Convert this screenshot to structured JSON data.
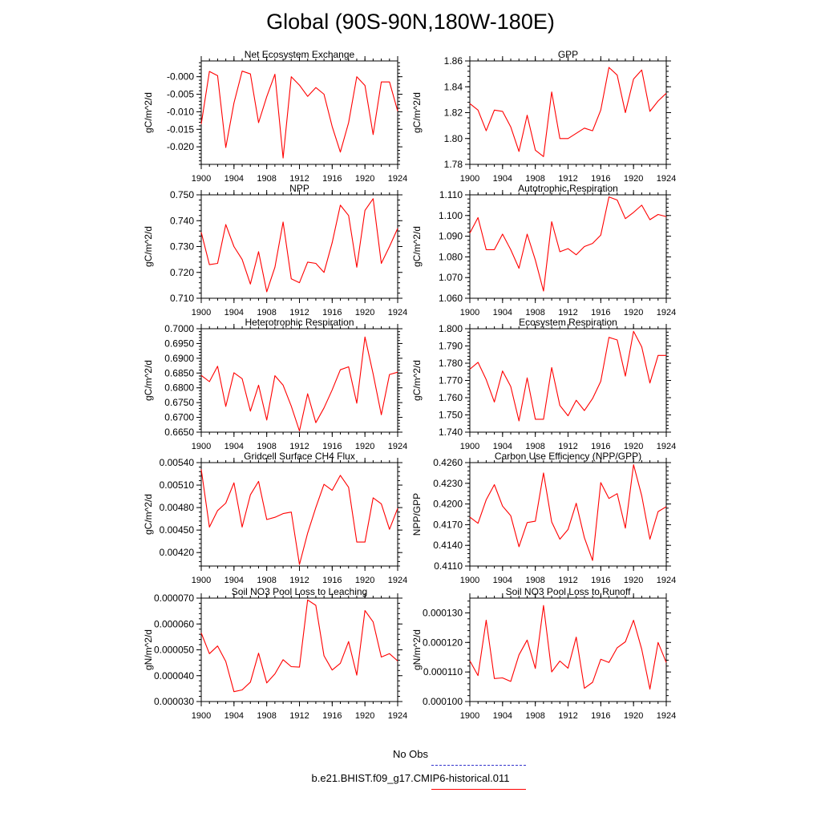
{
  "title": "Global (90S-90N,180W-180E)",
  "series_color": "#ff0000",
  "obs_color": "#3333cc",
  "legend": {
    "items": [
      {
        "label": "No Obs",
        "style": "dashed",
        "color": "#3333cc"
      },
      {
        "label": "b.e21.BHIST.f09_g17.CMIP6-historical.011",
        "style": "solid",
        "color": "#ff0000"
      }
    ]
  },
  "chart_data": [
    {
      "type": "line",
      "title": "Net Ecosystem Exchange",
      "ylabel": "gC/m^2/d",
      "xlim": [
        1900,
        1924
      ],
      "ylim": [
        -0.025,
        0.0045
      ],
      "xticks": [
        "1900",
        "1904",
        "1908",
        "1912",
        "1916",
        "1920",
        "1924"
      ],
      "xtick_values": [
        1900,
        1904,
        1908,
        1912,
        1916,
        1920,
        1924
      ],
      "yticks": [
        "-0.020",
        "-0.015",
        "-0.010",
        "-0.005",
        "-0.000"
      ],
      "ytick_values": [
        -0.02,
        -0.015,
        -0.01,
        -0.005,
        0.0
      ],
      "x": [
        1900,
        1901,
        1902,
        1903,
        1904,
        1905,
        1906,
        1907,
        1908,
        1909,
        1910,
        1911,
        1912,
        1913,
        1914,
        1915,
        1916,
        1917,
        1918,
        1919,
        1920,
        1921,
        1922,
        1923,
        1924
      ],
      "series": [
        {
          "values": [
            -0.0135,
            0.0015,
            0.0003,
            -0.0202,
            -0.0075,
            0.0016,
            0.0008,
            -0.0131,
            -0.0057,
            0.0007,
            -0.0232,
            0.0,
            -0.0024,
            -0.0056,
            -0.0031,
            -0.005,
            -0.0142,
            -0.0215,
            -0.0131,
            0.0,
            -0.0025,
            -0.0165,
            -0.0015,
            -0.0015,
            -0.0098
          ]
        }
      ]
    },
    {
      "type": "line",
      "title": "GPP",
      "ylabel": "gC/m^2/d",
      "xlim": [
        1900,
        1924
      ],
      "ylim": [
        1.78,
        1.86
      ],
      "xticks": [
        "1900",
        "1904",
        "1908",
        "1912",
        "1916",
        "1920",
        "1924"
      ],
      "xtick_values": [
        1900,
        1904,
        1908,
        1912,
        1916,
        1920,
        1924
      ],
      "yticks": [
        "1.78",
        "1.80",
        "1.82",
        "1.84",
        "1.86"
      ],
      "ytick_values": [
        1.78,
        1.8,
        1.82,
        1.84,
        1.86
      ],
      "x": [
        1900,
        1901,
        1902,
        1903,
        1904,
        1905,
        1906,
        1907,
        1908,
        1909,
        1910,
        1911,
        1912,
        1913,
        1914,
        1915,
        1916,
        1917,
        1918,
        1919,
        1920,
        1921,
        1922,
        1923,
        1924
      ],
      "series": [
        {
          "values": [
            1.827,
            1.822,
            1.806,
            1.822,
            1.821,
            1.809,
            1.79,
            1.818,
            1.791,
            1.786,
            1.836,
            1.8,
            1.8,
            1.804,
            1.808,
            1.806,
            1.822,
            1.855,
            1.849,
            1.82,
            1.846,
            1.853,
            1.821,
            1.829,
            1.835
          ]
        }
      ]
    },
    {
      "type": "line",
      "title": "NPP",
      "ylabel": "gC/m^2/d",
      "xlim": [
        1900,
        1924
      ],
      "ylim": [
        0.71,
        0.75
      ],
      "xticks": [
        "1900",
        "1904",
        "1908",
        "1912",
        "1916",
        "1920",
        "1924"
      ],
      "xtick_values": [
        1900,
        1904,
        1908,
        1912,
        1916,
        1920,
        1924
      ],
      "yticks": [
        "0.710",
        "0.720",
        "0.730",
        "0.740",
        "0.750"
      ],
      "ytick_values": [
        0.71,
        0.72,
        0.73,
        0.74,
        0.75
      ],
      "x": [
        1900,
        1901,
        1902,
        1903,
        1904,
        1905,
        1906,
        1907,
        1908,
        1909,
        1910,
        1911,
        1912,
        1913,
        1914,
        1915,
        1916,
        1917,
        1918,
        1919,
        1920,
        1921,
        1922,
        1923,
        1924
      ],
      "series": [
        {
          "values": [
            0.7355,
            0.723,
            0.7235,
            0.7385,
            0.73,
            0.725,
            0.7155,
            0.728,
            0.7125,
            0.722,
            0.7395,
            0.7175,
            0.716,
            0.724,
            0.7235,
            0.72,
            0.7315,
            0.746,
            0.742,
            0.722,
            0.744,
            0.7485,
            0.7235,
            0.73,
            0.737
          ]
        }
      ]
    },
    {
      "type": "line",
      "title": "Autotrophic Respiration",
      "ylabel": "gC/m^2/d",
      "xlim": [
        1900,
        1924
      ],
      "ylim": [
        1.06,
        1.11
      ],
      "xticks": [
        "1900",
        "1904",
        "1908",
        "1912",
        "1916",
        "1920",
        "1924"
      ],
      "xtick_values": [
        1900,
        1904,
        1908,
        1912,
        1916,
        1920,
        1924
      ],
      "yticks": [
        "1.060",
        "1.070",
        "1.080",
        "1.090",
        "1.100",
        "1.110"
      ],
      "ytick_values": [
        1.06,
        1.07,
        1.08,
        1.09,
        1.1,
        1.11
      ],
      "x": [
        1900,
        1901,
        1902,
        1903,
        1904,
        1905,
        1906,
        1907,
        1908,
        1909,
        1910,
        1911,
        1912,
        1913,
        1914,
        1915,
        1916,
        1917,
        1918,
        1919,
        1920,
        1921,
        1922,
        1923,
        1924
      ],
      "series": [
        {
          "values": [
            1.0915,
            1.099,
            1.0835,
            1.0835,
            1.091,
            1.0835,
            1.0745,
            1.091,
            1.0785,
            1.0635,
            1.097,
            1.0825,
            1.084,
            1.081,
            1.085,
            1.0865,
            1.0905,
            1.109,
            1.1075,
            1.0985,
            1.1015,
            1.105,
            1.098,
            1.1005,
            1.0995
          ]
        }
      ]
    },
    {
      "type": "line",
      "title": "Heterotrophic Respiration",
      "ylabel": "gC/m^2/d",
      "xlim": [
        1900,
        1924
      ],
      "ylim": [
        0.665,
        0.7
      ],
      "xticks": [
        "1900",
        "1904",
        "1908",
        "1912",
        "1916",
        "1920",
        "1924"
      ],
      "xtick_values": [
        1900,
        1904,
        1908,
        1912,
        1916,
        1920,
        1924
      ],
      "yticks": [
        "0.6650",
        "0.6700",
        "0.6750",
        "0.6800",
        "0.6850",
        "0.6900",
        "0.6950",
        "0.7000"
      ],
      "ytick_values": [
        0.665,
        0.67,
        0.675,
        0.68,
        0.685,
        0.69,
        0.695,
        0.7
      ],
      "x": [
        1900,
        1901,
        1902,
        1903,
        1904,
        1905,
        1906,
        1907,
        1908,
        1909,
        1910,
        1911,
        1912,
        1913,
        1914,
        1915,
        1916,
        1917,
        1918,
        1919,
        1920,
        1921,
        1922,
        1923,
        1924
      ],
      "series": [
        {
          "values": [
            0.6842,
            0.6821,
            0.6873,
            0.6737,
            0.6851,
            0.6831,
            0.6721,
            0.6809,
            0.6691,
            0.6841,
            0.6809,
            0.6738,
            0.6654,
            0.678,
            0.6682,
            0.6732,
            0.6793,
            0.6861,
            0.6871,
            0.6748,
            0.6972,
            0.6847,
            0.6709,
            0.6845,
            0.6853
          ]
        }
      ]
    },
    {
      "type": "line",
      "title": "Ecosystem Respiration",
      "ylabel": "gC/m^2/d",
      "xlim": [
        1900,
        1924
      ],
      "ylim": [
        1.74,
        1.8
      ],
      "xticks": [
        "1900",
        "1904",
        "1908",
        "1912",
        "1916",
        "1920",
        "1924"
      ],
      "xtick_values": [
        1900,
        1904,
        1908,
        1912,
        1916,
        1920,
        1924
      ],
      "yticks": [
        "1.740",
        "1.750",
        "1.760",
        "1.770",
        "1.780",
        "1.790",
        "1.800"
      ],
      "ytick_values": [
        1.74,
        1.75,
        1.76,
        1.77,
        1.78,
        1.79,
        1.8
      ],
      "x": [
        1900,
        1901,
        1902,
        1903,
        1904,
        1905,
        1906,
        1907,
        1908,
        1909,
        1910,
        1911,
        1912,
        1913,
        1914,
        1915,
        1916,
        1917,
        1918,
        1919,
        1920,
        1921,
        1922,
        1923,
        1924
      ],
      "series": [
        {
          "values": [
            1.7765,
            1.7805,
            1.7705,
            1.7575,
            1.7755,
            1.7665,
            1.7465,
            1.7715,
            1.7475,
            1.7475,
            1.7775,
            1.7555,
            1.7495,
            1.7585,
            1.7525,
            1.7595,
            1.7695,
            1.795,
            1.7935,
            1.7725,
            1.7985,
            1.7895,
            1.7685,
            1.7845,
            1.7845
          ]
        }
      ]
    },
    {
      "type": "line",
      "title": "Gridcell Surface CH4 Flux",
      "ylabel": "gC/m^2/d",
      "xlim": [
        1900,
        1924
      ],
      "ylim": [
        0.00402,
        0.0054
      ],
      "xticks": [
        "1900",
        "1904",
        "1908",
        "1912",
        "1916",
        "1920",
        "1924"
      ],
      "xtick_values": [
        1900,
        1904,
        1908,
        1912,
        1916,
        1920,
        1924
      ],
      "yticks": [
        "0.00420",
        "0.00450",
        "0.00480",
        "0.00510",
        "0.00540"
      ],
      "ytick_values": [
        0.0042,
        0.0045,
        0.0048,
        0.0051,
        0.0054
      ],
      "x": [
        1900,
        1901,
        1902,
        1903,
        1904,
        1905,
        1906,
        1907,
        1908,
        1909,
        1910,
        1911,
        1912,
        1913,
        1914,
        1915,
        1916,
        1917,
        1918,
        1919,
        1920,
        1921,
        1922,
        1923,
        1924
      ],
      "series": [
        {
          "values": [
            0.00531,
            0.00454,
            0.00476,
            0.00486,
            0.00513,
            0.00454,
            0.00497,
            0.00515,
            0.00464,
            0.00467,
            0.00472,
            0.00474,
            0.00404,
            0.00446,
            0.0048,
            0.00511,
            0.00503,
            0.00523,
            0.00507,
            0.00434,
            0.00434,
            0.00493,
            0.00485,
            0.00451,
            0.00479
          ]
        }
      ]
    },
    {
      "type": "line",
      "title": "Carbon Use Efficiency (NPP/GPP)",
      "ylabel": "NPP/GPP",
      "xlim": [
        1900,
        1924
      ],
      "ylim": [
        0.411,
        0.426
      ],
      "xticks": [
        "1900",
        "1904",
        "1908",
        "1912",
        "1916",
        "1920",
        "1924"
      ],
      "xtick_values": [
        1900,
        1904,
        1908,
        1912,
        1916,
        1920,
        1924
      ],
      "yticks": [
        "0.4110",
        "0.4140",
        "0.4170",
        "0.4200",
        "0.4230",
        "0.4260"
      ],
      "ytick_values": [
        0.411,
        0.414,
        0.417,
        0.42,
        0.423,
        0.426
      ],
      "x": [
        1900,
        1901,
        1902,
        1903,
        1904,
        1905,
        1906,
        1907,
        1908,
        1909,
        1910,
        1911,
        1912,
        1913,
        1914,
        1915,
        1916,
        1917,
        1918,
        1919,
        1920,
        1921,
        1922,
        1923,
        1924
      ],
      "series": [
        {
          "values": [
            0.4181,
            0.4172,
            0.4206,
            0.4228,
            0.4197,
            0.4183,
            0.4138,
            0.4173,
            0.4175,
            0.4245,
            0.4174,
            0.4149,
            0.4163,
            0.4201,
            0.4151,
            0.4118,
            0.4231,
            0.4208,
            0.4215,
            0.4165,
            0.4257,
            0.4212,
            0.4149,
            0.4189,
            0.4196
          ]
        }
      ]
    },
    {
      "type": "line",
      "title": "Soil NO3 Pool Loss to Leaching",
      "ylabel": "gN/m^2/d",
      "xlim": [
        1900,
        1924
      ],
      "ylim": [
        3e-05,
        7e-05
      ],
      "xticks": [
        "1900",
        "1904",
        "1908",
        "1912",
        "1916",
        "1920",
        "1924"
      ],
      "xtick_values": [
        1900,
        1904,
        1908,
        1912,
        1916,
        1920,
        1924
      ],
      "yticks": [
        "0.000030",
        "0.000040",
        "0.000050",
        "0.000060",
        "0.000070"
      ],
      "ytick_values": [
        3e-05,
        4e-05,
        5e-05,
        6e-05,
        7e-05
      ],
      "x": [
        1900,
        1901,
        1902,
        1903,
        1904,
        1905,
        1906,
        1907,
        1908,
        1909,
        1910,
        1911,
        1912,
        1913,
        1914,
        1915,
        1916,
        1917,
        1918,
        1919,
        1920,
        1921,
        1922,
        1923,
        1924
      ],
      "series": [
        {
          "values": [
            5.65e-05,
            4.85e-05,
            5.15e-05,
            4.55e-05,
            3.38e-05,
            3.45e-05,
            3.75e-05,
            4.87e-05,
            3.72e-05,
            4.07e-05,
            4.62e-05,
            4.35e-05,
            4.33e-05,
            6.93e-05,
            6.72e-05,
            4.77e-05,
            4.22e-05,
            4.48e-05,
            5.32e-05,
            4.02e-05,
            6.52e-05,
            6.08e-05,
            4.72e-05,
            4.85e-05,
            4.57e-05
          ]
        }
      ]
    },
    {
      "type": "line",
      "title": "Soil NO3 Pool Loss to Runoff",
      "ylabel": "gN/m^2/d",
      "xlim": [
        1900,
        1924
      ],
      "ylim": [
        0.0001,
        0.000135
      ],
      "xticks": [
        "1900",
        "1904",
        "1908",
        "1912",
        "1916",
        "1920",
        "1924"
      ],
      "xtick_values": [
        1900,
        1904,
        1908,
        1912,
        1916,
        1920,
        1924
      ],
      "yticks": [
        "0.000100",
        "0.000110",
        "0.000120",
        "0.000130"
      ],
      "ytick_values": [
        0.0001,
        0.00011,
        0.00012,
        0.00013
      ],
      "x": [
        1900,
        1901,
        1902,
        1903,
        1904,
        1905,
        1906,
        1907,
        1908,
        1909,
        1910,
        1911,
        1912,
        1913,
        1914,
        1915,
        1916,
        1917,
        1918,
        1919,
        1920,
        1921,
        1922,
        1923,
        1924
      ],
      "series": [
        {
          "values": [
            0.0001138,
            0.0001088,
            0.0001275,
            0.0001078,
            0.000108,
            0.0001068,
            0.0001158,
            0.0001208,
            0.0001112,
            0.0001325,
            0.00011,
            0.0001137,
            0.0001113,
            0.0001218,
            0.0001045,
            0.0001065,
            0.0001143,
            0.0001132,
            0.0001182,
            0.0001202,
            0.0001275,
            0.0001177,
            0.0001042,
            0.00012,
            0.0001132
          ]
        }
      ]
    }
  ]
}
